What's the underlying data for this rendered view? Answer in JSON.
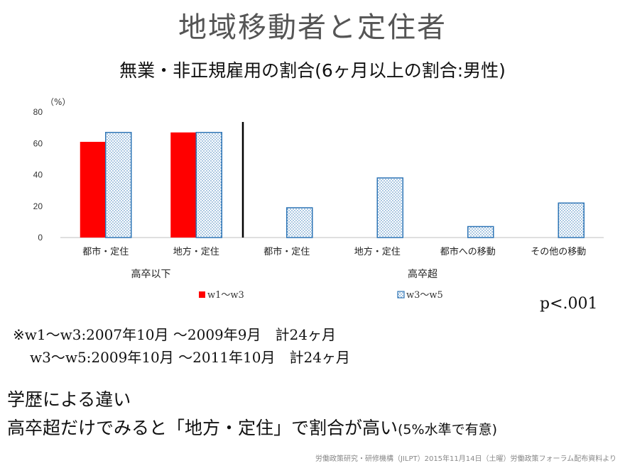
{
  "title": "地域移動者と定住者",
  "subtitle": "無業・非正規雇用の割合(6ヶ月以上の割合:男性)",
  "p_value": "p<.001",
  "notes": {
    "line1": "※w1〜w3:2007年10月 〜2009年9月　計24ヶ月",
    "line2": "w3〜w5:2009年10月 〜2011年10月　計24ヶ月"
  },
  "finding": {
    "title": "学歴による違い",
    "text": "高卒超だけでみると「地方・定住」で割合が高い",
    "paren": "(5%水準で有意)"
  },
  "footer": "労働政策研究・研修機構（JILPT）2015年11月14日（土曜）労働政策フォーラム配布資料より",
  "chart_data": {
    "type": "bar",
    "unit_label": "（%）",
    "ylim": [
      0,
      80
    ],
    "yticks": [
      0,
      20,
      40,
      60,
      80
    ],
    "categories": [
      "都市・定住",
      "地方・定住",
      "都市・定住",
      "地方・定住",
      "都市への移動",
      "その他の移動"
    ],
    "groups": [
      {
        "label": "高卒以下",
        "start": 0,
        "end": 1
      },
      {
        "label": "高卒超",
        "start": 2,
        "end": 5
      }
    ],
    "series": [
      {
        "name": "w1〜w3",
        "color": "#ff0000",
        "pattern": "solid",
        "values": [
          61,
          67,
          null,
          null,
          null,
          null
        ]
      },
      {
        "name": "w3〜w5",
        "color": "#2e75b6",
        "pattern": "dotted",
        "values": [
          67,
          67,
          19,
          38,
          7,
          22
        ]
      }
    ],
    "separator_after_category": 1,
    "legend_position": "bottom",
    "grid": false
  }
}
